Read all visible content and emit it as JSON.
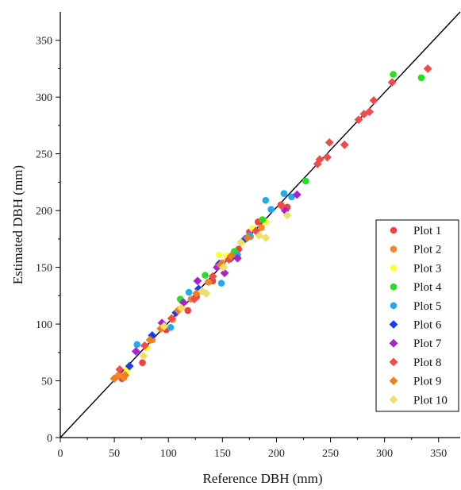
{
  "chart_data": {
    "type": "scatter",
    "title": "",
    "xlabel": "Reference DBH (mm)",
    "ylabel": "Estimated DBH (mm)",
    "xlim": [
      0,
      370
    ],
    "ylim": [
      0,
      375
    ],
    "xticks": [
      0,
      50,
      100,
      150,
      200,
      250,
      300,
      350
    ],
    "yticks": [
      0,
      50,
      100,
      150,
      200,
      250,
      300,
      350
    ],
    "grid": false,
    "legend_position": "right",
    "reference_line": {
      "from": [
        0,
        0
      ],
      "to": [
        370,
        375
      ],
      "color": "#000000"
    },
    "series": [
      {
        "name": "Plot 1",
        "marker": "circle",
        "color": "#f04040",
        "points": [
          [
            57,
            52
          ],
          [
            76,
            66
          ],
          [
            98,
            95
          ],
          [
            118,
            112
          ],
          [
            126,
            124
          ],
          [
            141,
            138
          ],
          [
            165,
            166
          ],
          [
            175,
            181
          ],
          [
            183,
            190
          ],
          [
            204,
            205
          ],
          [
            210,
            203
          ]
        ]
      },
      {
        "name": "Plot 2",
        "marker": "circle",
        "color": "#f5852a",
        "points": [
          [
            54,
            55
          ],
          [
            59,
            53
          ],
          [
            85,
            86
          ],
          [
            104,
            104
          ],
          [
            121,
            122
          ],
          [
            137,
            137
          ],
          [
            150,
            154
          ],
          [
            163,
            162
          ],
          [
            176,
            177
          ],
          [
            186,
            185
          ]
        ]
      },
      {
        "name": "Plot 3",
        "marker": "circle",
        "color": "#ffff33",
        "points": [
          [
            62,
            60
          ],
          [
            80,
            79
          ],
          [
            113,
            116
          ],
          [
            147,
            161
          ],
          [
            154,
            160
          ],
          [
            168,
            172
          ],
          [
            178,
            184
          ],
          [
            190,
            190
          ]
        ]
      },
      {
        "name": "Plot 4",
        "marker": "circle",
        "color": "#22e022",
        "points": [
          [
            111,
            122
          ],
          [
            134,
            143
          ],
          [
            161,
            164
          ],
          [
            187,
            192
          ],
          [
            227,
            226
          ],
          [
            308,
            320
          ],
          [
            334,
            317
          ]
        ]
      },
      {
        "name": "Plot 5",
        "marker": "circle",
        "color": "#22aaee",
        "points": [
          [
            71,
            82
          ],
          [
            102,
            97
          ],
          [
            119,
            128
          ],
          [
            149,
            136
          ],
          [
            164,
            161
          ],
          [
            175,
            178
          ],
          [
            190,
            209
          ],
          [
            195,
            201
          ],
          [
            207,
            215
          ],
          [
            214,
            212
          ]
        ]
      },
      {
        "name": "Plot 6",
        "marker": "diamond",
        "color": "#1a3ee8",
        "points": [
          [
            64,
            63
          ],
          [
            85,
            90
          ],
          [
            107,
            110
          ],
          [
            128,
            131
          ],
          [
            147,
            153
          ],
          [
            158,
            158
          ],
          [
            171,
            175
          ]
        ]
      },
      {
        "name": "Plot 7",
        "marker": "diamond",
        "color": "#aa22cc",
        "points": [
          [
            70,
            76
          ],
          [
            94,
            101
          ],
          [
            114,
            119
          ],
          [
            127,
            138
          ],
          [
            145,
            150
          ],
          [
            152,
            145
          ],
          [
            164,
            158
          ],
          [
            208,
            200
          ],
          [
            219,
            214
          ]
        ]
      },
      {
        "name": "Plot 8",
        "marker": "diamond",
        "color": "#f04a4a",
        "points": [
          [
            50,
            52
          ],
          [
            55,
            60
          ],
          [
            78,
            81
          ],
          [
            103,
            105
          ],
          [
            124,
            122
          ],
          [
            141,
            142
          ],
          [
            156,
            157
          ],
          [
            181,
            182
          ],
          [
            205,
            204
          ],
          [
            238,
            241
          ],
          [
            240,
            245
          ],
          [
            247,
            247
          ],
          [
            249,
            260
          ],
          [
            263,
            258
          ],
          [
            276,
            280
          ],
          [
            281,
            285
          ],
          [
            286,
            287
          ],
          [
            290,
            297
          ],
          [
            307,
            313
          ],
          [
            340,
            325
          ]
        ]
      },
      {
        "name": "Plot 9",
        "marker": "diamond",
        "color": "#f07f18",
        "points": [
          [
            50,
            52
          ],
          [
            60,
            55
          ],
          [
            83,
            86
          ],
          [
            93,
            96
          ],
          [
            109,
            112
          ],
          [
            126,
            127
          ],
          [
            148,
            152
          ],
          [
            158,
            160
          ],
          [
            173,
            176
          ]
        ]
      },
      {
        "name": "Plot 10",
        "marker": "diamond",
        "color": "#ede06a",
        "points": [
          [
            77,
            72
          ],
          [
            96,
            98
          ],
          [
            112,
            114
          ],
          [
            131,
            129
          ],
          [
            135,
            127
          ],
          [
            151,
            150
          ],
          [
            167,
            172
          ],
          [
            184,
            178
          ],
          [
            190,
            176
          ],
          [
            210,
            196
          ]
        ]
      }
    ]
  }
}
